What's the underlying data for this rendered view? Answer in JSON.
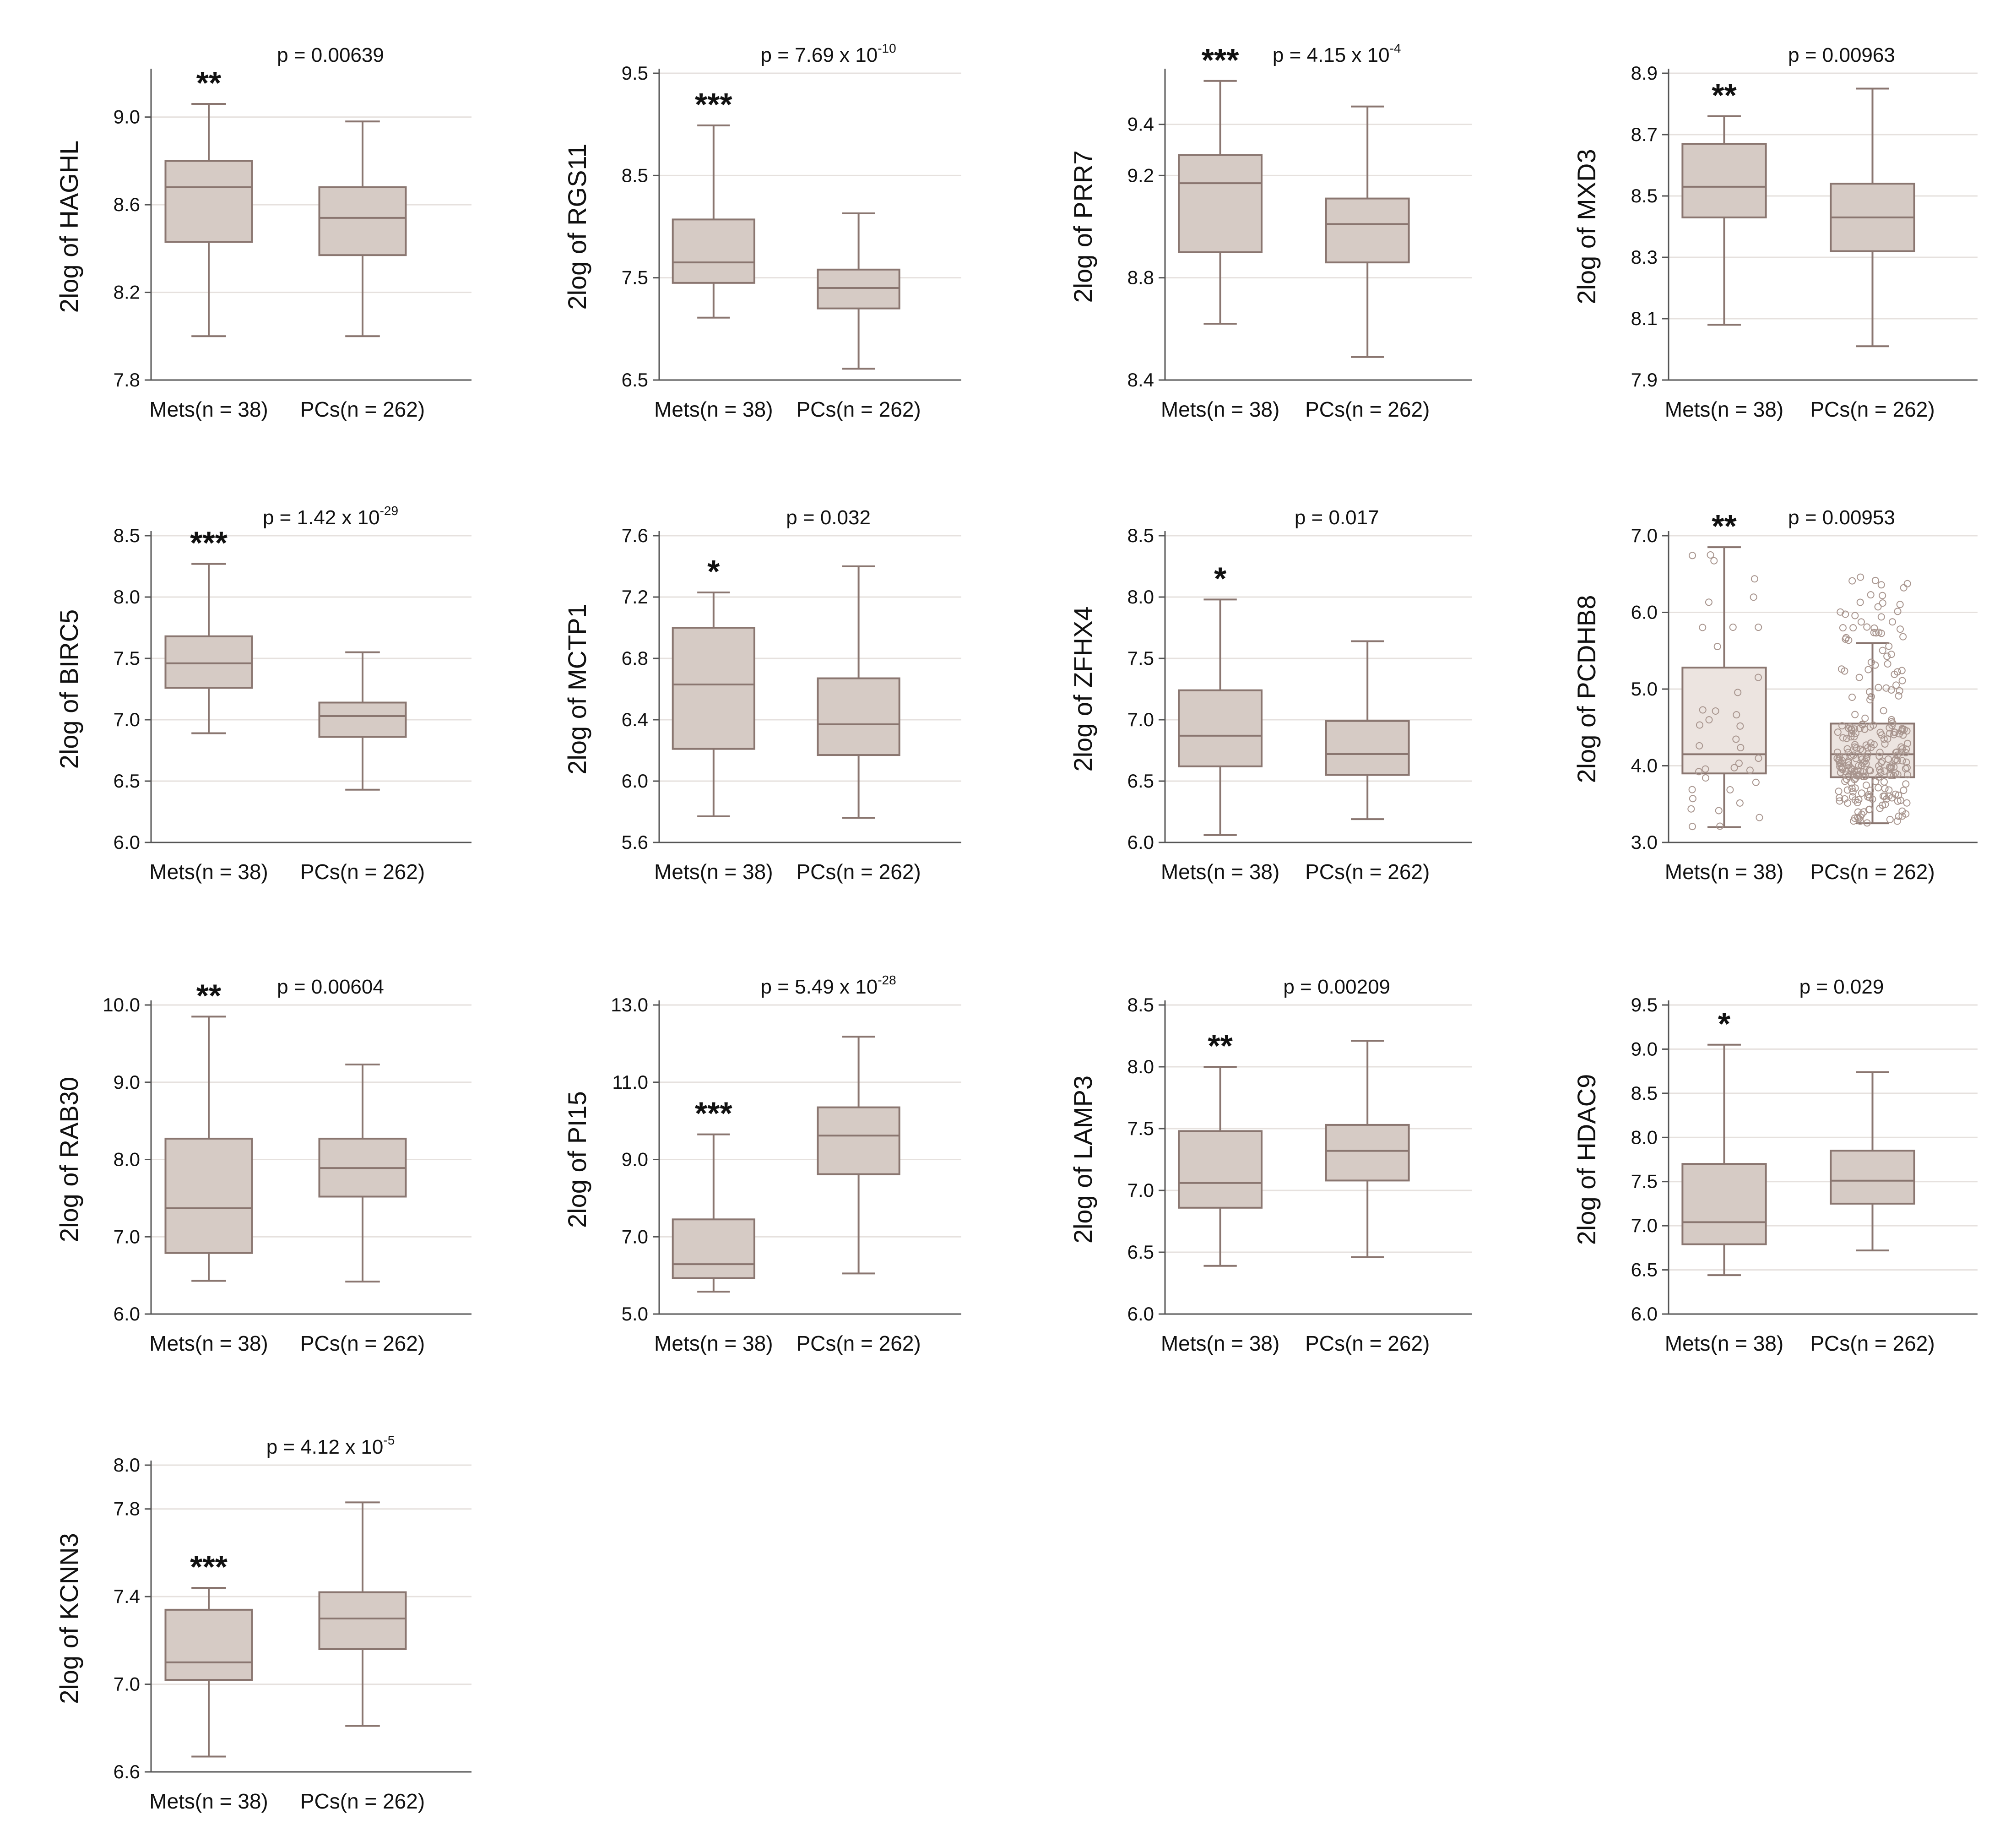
{
  "chart_data": [
    {
      "type": "box",
      "ylabel": "2log of HAGHL",
      "categories": [
        "Mets(n = 38)",
        "PCs(n = 262)"
      ],
      "ylim": [
        7.8,
        9.2
      ],
      "yticks": [
        "7.8",
        "8.2",
        "8.6",
        "9.0"
      ],
      "p": {
        "base": "p = 0.00639",
        "exp": ""
      },
      "sig": "**",
      "boxes": [
        {
          "min": 8.0,
          "q1": 8.43,
          "median": 8.68,
          "q3": 8.8,
          "max": 9.06
        },
        {
          "min": 8.0,
          "q1": 8.37,
          "median": 8.54,
          "q3": 8.68,
          "max": 8.98
        }
      ]
    },
    {
      "type": "box",
      "ylabel": "2log of RGS11",
      "categories": [
        "Mets(n = 38)",
        "PCs(n = 262)"
      ],
      "ylim": [
        6.5,
        9.5
      ],
      "yticks": [
        "6.5",
        "7.5",
        "8.5",
        "9.5"
      ],
      "p": {
        "base": "p = 7.69 x 10",
        "exp": "-10"
      },
      "sig": "***",
      "boxes": [
        {
          "min": 7.11,
          "q1": 7.45,
          "median": 7.65,
          "q3": 8.07,
          "max": 8.99
        },
        {
          "min": 6.61,
          "q1": 7.2,
          "median": 7.4,
          "q3": 7.58,
          "max": 8.13
        }
      ]
    },
    {
      "type": "box",
      "ylabel": "2log of PRR7",
      "categories": [
        "Mets(n = 38)",
        "PCs(n = 262)"
      ],
      "ylim": [
        8.4,
        9.6
      ],
      "yticks": [
        "8.4",
        "8.8",
        "9.2",
        "9.4"
      ],
      "p": {
        "base": "p = 4.15 x 10",
        "exp": "-4"
      },
      "sig": "***",
      "boxes": [
        {
          "min": 8.62,
          "q1": 8.9,
          "median": 9.17,
          "q3": 9.28,
          "max": 9.57
        },
        {
          "min": 8.49,
          "q1": 8.86,
          "median": 9.01,
          "q3": 9.11,
          "max": 9.47
        }
      ]
    },
    {
      "type": "box",
      "ylabel": "2log of MXD3",
      "categories": [
        "Mets(n = 38)",
        "PCs(n = 262)"
      ],
      "ylim": [
        7.9,
        8.9
      ],
      "yticks": [
        "7.9",
        "8.1",
        "8.3",
        "8.5",
        "8.7",
        "8.9"
      ],
      "p": {
        "base": "p = 0.00963",
        "exp": ""
      },
      "sig": "**",
      "boxes": [
        {
          "min": 8.08,
          "q1": 8.43,
          "median": 8.53,
          "q3": 8.67,
          "max": 8.76
        },
        {
          "min": 8.01,
          "q1": 8.32,
          "median": 8.43,
          "q3": 8.54,
          "max": 8.85
        }
      ]
    },
    {
      "type": "box",
      "ylabel": "2log of BIRC5",
      "categories": [
        "Mets(n = 38)",
        "PCs(n = 262)"
      ],
      "ylim": [
        6.0,
        8.5
      ],
      "yticks": [
        "6.0",
        "6.5",
        "7.0",
        "7.5",
        "8.0",
        "8.5"
      ],
      "p": {
        "base": "p = 1.42 x 10",
        "exp": "-29"
      },
      "sig": "***",
      "boxes": [
        {
          "min": 6.89,
          "q1": 7.26,
          "median": 7.46,
          "q3": 7.68,
          "max": 8.27
        },
        {
          "min": 6.43,
          "q1": 6.86,
          "median": 7.03,
          "q3": 7.14,
          "max": 7.55
        }
      ]
    },
    {
      "type": "box",
      "ylabel": "2log of MCTP1",
      "categories": [
        "Mets(n = 38)",
        "PCs(n = 262)"
      ],
      "ylim": [
        5.6,
        7.6
      ],
      "yticks": [
        "5.6",
        "6.0",
        "6.4",
        "6.8",
        "7.2",
        "7.6"
      ],
      "p": {
        "base": "p = 0.032",
        "exp": ""
      },
      "sig": "*",
      "boxes": [
        {
          "min": 5.77,
          "q1": 6.21,
          "median": 6.63,
          "q3": 7.0,
          "max": 7.23
        },
        {
          "min": 5.76,
          "q1": 6.17,
          "median": 6.37,
          "q3": 6.67,
          "max": 7.4
        }
      ]
    },
    {
      "type": "box",
      "ylabel": "2log of ZFHX4",
      "categories": [
        "Mets(n = 38)",
        "PCs(n = 262)"
      ],
      "ylim": [
        6.0,
        8.5
      ],
      "yticks": [
        "6.0",
        "6.5",
        "7.0",
        "7.5",
        "8.0",
        "8.5"
      ],
      "p": {
        "base": "p = 0.017",
        "exp": ""
      },
      "sig": "*",
      "boxes": [
        {
          "min": 6.06,
          "q1": 6.62,
          "median": 6.87,
          "q3": 7.24,
          "max": 7.98
        },
        {
          "min": 6.19,
          "q1": 6.55,
          "median": 6.72,
          "q3": 6.99,
          "max": 7.64
        }
      ]
    },
    {
      "type": "box",
      "ylabel": "2log of PCDHB8",
      "categories": [
        "Mets(n = 38)",
        "PCs(n = 262)"
      ],
      "ylim": [
        3.0,
        7.0
      ],
      "yticks": [
        "3.0",
        "4.0",
        "5.0",
        "6.0",
        "7.0"
      ],
      "p": {
        "base": "p = 0.00953",
        "exp": ""
      },
      "sig": "**",
      "points": true,
      "boxes": [
        {
          "min": 3.2,
          "q1": 3.9,
          "median": 4.15,
          "q3": 5.28,
          "max": 6.85
        },
        {
          "min": 3.25,
          "q1": 3.85,
          "median": 4.15,
          "q3": 4.55,
          "max": 5.6
        }
      ]
    },
    {
      "type": "box",
      "ylabel": "2log of RAB30",
      "categories": [
        "Mets(n = 38)",
        "PCs(n = 262)"
      ],
      "ylim": [
        6.0,
        10.0
      ],
      "yticks": [
        "6.0",
        "7.0",
        "8.0",
        "9.0",
        "10.0"
      ],
      "p": {
        "base": "p = 0.00604",
        "exp": ""
      },
      "sig": "**",
      "boxes": [
        {
          "min": 6.43,
          "q1": 6.79,
          "median": 7.37,
          "q3": 8.27,
          "max": 9.85
        },
        {
          "min": 6.42,
          "q1": 7.52,
          "median": 7.89,
          "q3": 8.27,
          "max": 9.23
        }
      ]
    },
    {
      "type": "box",
      "ylabel": "2log of PI15",
      "categories": [
        "Mets(n = 38)",
        "PCs(n = 262)"
      ],
      "ylim": [
        5.0,
        13.0
      ],
      "yticks": [
        "5.0",
        "7.0",
        "9.0",
        "11.0",
        "13.0"
      ],
      "p": {
        "base": "p = 5.49 x 10",
        "exp": "-28"
      },
      "sig": "***",
      "boxes": [
        {
          "min": 5.58,
          "q1": 5.93,
          "median": 6.29,
          "q3": 7.45,
          "max": 9.65
        },
        {
          "min": 6.05,
          "q1": 8.62,
          "median": 9.62,
          "q3": 10.35,
          "max": 12.18
        }
      ]
    },
    {
      "type": "box",
      "ylabel": "2log of LAMP3",
      "categories": [
        "Mets(n = 38)",
        "PCs(n = 262)"
      ],
      "ylim": [
        6.0,
        8.5
      ],
      "yticks": [
        "6.0",
        "6.5",
        "7.0",
        "7.5",
        "8.0",
        "8.5"
      ],
      "p": {
        "base": "p = 0.00209",
        "exp": ""
      },
      "sig": "**",
      "boxes": [
        {
          "min": 6.39,
          "q1": 6.86,
          "median": 7.06,
          "q3": 7.48,
          "max": 8.0
        },
        {
          "min": 6.46,
          "q1": 7.08,
          "median": 7.32,
          "q3": 7.53,
          "max": 8.21
        }
      ]
    },
    {
      "type": "box",
      "ylabel": "2log of HDAC9",
      "categories": [
        "Mets(n = 38)",
        "PCs(n = 262)"
      ],
      "ylim": [
        6.0,
        9.5
      ],
      "yticks": [
        "6.0",
        "6.5",
        "7.0",
        "7.5",
        "8.0",
        "8.5",
        "9.0",
        "9.5"
      ],
      "p": {
        "base": "p = 0.029",
        "exp": ""
      },
      "sig": "*",
      "boxes": [
        {
          "min": 6.44,
          "q1": 6.79,
          "median": 7.04,
          "q3": 7.7,
          "max": 9.05
        },
        {
          "min": 6.72,
          "q1": 7.25,
          "median": 7.51,
          "q3": 7.85,
          "max": 8.74
        }
      ]
    },
    {
      "type": "box",
      "ylabel": "2log of KCNN3",
      "categories": [
        "Mets(n = 38)",
        "PCs(n = 262)"
      ],
      "ylim": [
        6.6,
        8.0
      ],
      "yticks": [
        "6.6",
        "7.0",
        "7.4",
        "7.8",
        "8.0"
      ],
      "p": {
        "base": "p = 4.12 x 10",
        "exp": "-5"
      },
      "sig": "***",
      "boxes": [
        {
          "min": 6.67,
          "q1": 7.02,
          "median": 7.1,
          "q3": 7.34,
          "max": 7.44
        },
        {
          "min": 6.81,
          "q1": 7.16,
          "median": 7.3,
          "q3": 7.42,
          "max": 7.83
        }
      ]
    }
  ]
}
